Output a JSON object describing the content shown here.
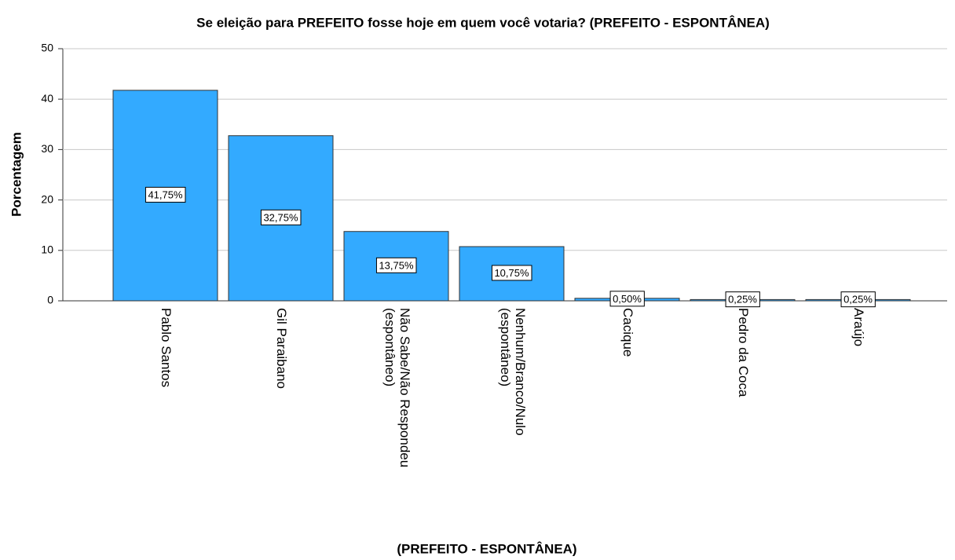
{
  "chart_data": {
    "type": "bar",
    "title": "Se eleição para PREFEITO fosse hoje em quem você votaria? (PREFEITO - ESPONTÂNEA)",
    "x_label": "(PREFEITO - ESPONTÂNEA)",
    "y_label": "Porcentagem",
    "categories": [
      "Pablo Santos",
      "Gil Paraibano",
      "Não Sabe/Não Respondeu\n(espontâneo)",
      "Nenhum/Branco/Nulo\n(espontâneo)",
      "Cacique",
      "Pedro da Coca",
      "Araújo"
    ],
    "values": [
      41.75,
      32.75,
      13.75,
      10.75,
      0.5,
      0.25,
      0.25
    ],
    "value_labels": [
      "41,75%",
      "32,75%",
      "13,75%",
      "10,75%",
      "0,50%",
      "0,25%",
      "0,25%"
    ],
    "color": "#33aaff",
    "ylim": [
      0,
      50
    ],
    "yticks": [
      0,
      10,
      20,
      30,
      40,
      50
    ],
    "grid": true
  }
}
